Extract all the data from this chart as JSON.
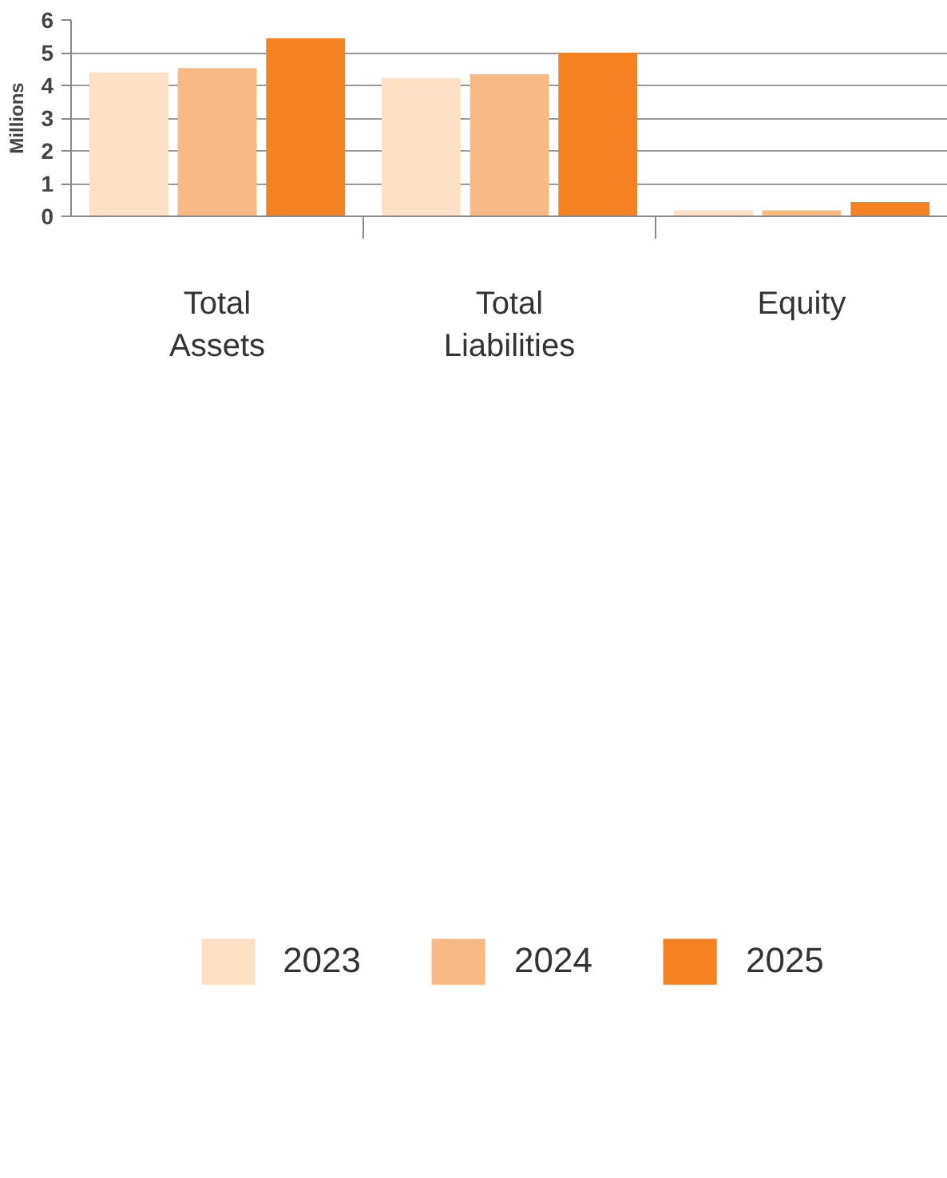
{
  "chart_data": {
    "type": "bar",
    "ylabel": "Millions",
    "categories": [
      "Total Assets",
      "Total Liabilities",
      "Equity"
    ],
    "series": [
      {
        "name": "2023",
        "color": "#fde0c5",
        "values": [
          4.4,
          4.23,
          0.18
        ]
      },
      {
        "name": "2024",
        "color": "#f9b984",
        "values": [
          4.53,
          4.35,
          0.18
        ]
      },
      {
        "name": "2025",
        "color": "#f58220",
        "values": [
          5.44,
          5.0,
          0.44
        ]
      }
    ],
    "ylim": [
      0,
      6
    ],
    "yticks": [
      0,
      1,
      2,
      3,
      4,
      5,
      6
    ],
    "grid": "y",
    "legend": "bottom"
  }
}
